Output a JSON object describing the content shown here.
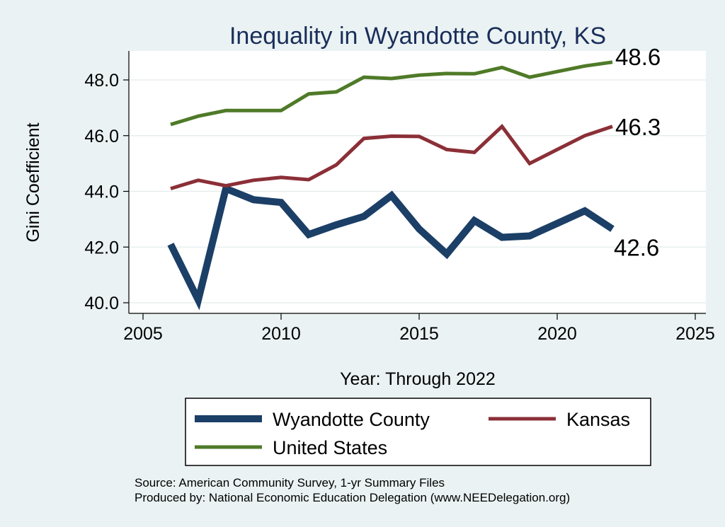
{
  "chart_data": {
    "type": "line",
    "title": "Inequality in Wyandotte County, KS",
    "xlabel": "Year: Through 2022",
    "ylabel": "Gini Coefficient",
    "xlim": [
      2005,
      2025
    ],
    "ylim": [
      40.0,
      49.0
    ],
    "xticks": [
      2005,
      2010,
      2015,
      2020,
      2025
    ],
    "xtick_labels": [
      "2005",
      "2010",
      "2015",
      "2020",
      "2025"
    ],
    "yticks": [
      40.0,
      42.0,
      44.0,
      46.0,
      48.0
    ],
    "ytick_labels": [
      "40.0",
      "42.0",
      "44.0",
      "46.0",
      "48.0"
    ],
    "grid": true,
    "x": [
      2006,
      2007,
      2008,
      2009,
      2010,
      2011,
      2012,
      2013,
      2014,
      2015,
      2016,
      2017,
      2018,
      2019,
      2020,
      2021,
      2022
    ],
    "series": [
      {
        "name": "Wyandotte County",
        "color": "#1b3f66",
        "values": [
          42.1,
          40.1,
          44.1,
          43.7,
          43.6,
          42.45,
          42.8,
          43.1,
          43.85,
          42.65,
          41.75,
          42.95,
          42.35,
          42.4,
          42.85,
          43.3,
          42.65
        ],
        "end_label": "42.6"
      },
      {
        "name": "Kansas",
        "color": "#8b2f37",
        "values": [
          44.1,
          44.4,
          44.2,
          44.4,
          44.5,
          44.42,
          44.95,
          45.9,
          45.98,
          45.97,
          45.5,
          45.4,
          46.33,
          45.0,
          45.5,
          46.0,
          46.33
        ],
        "end_label": "46.3"
      },
      {
        "name": "United States",
        "color": "#4f7a28",
        "values": [
          46.4,
          46.7,
          46.9,
          46.9,
          46.9,
          47.5,
          47.57,
          48.1,
          48.05,
          48.17,
          48.23,
          48.22,
          48.45,
          48.1,
          48.3,
          48.5,
          48.64
        ],
        "end_label": "48.6"
      }
    ],
    "legend": {
      "placement": "bottom",
      "items": [
        "Wyandotte County",
        "Kansas",
        "United States"
      ]
    }
  },
  "footer": {
    "source": "Source: American Community Survey, 1-yr Summary Files",
    "produced_by": "Produced by: National Economic Education Delegation (www.NEEDelegation.org)"
  },
  "colors": {
    "background": "#eaf2f3",
    "plot_area": "#ffffff",
    "title": "#1a2e5a"
  }
}
